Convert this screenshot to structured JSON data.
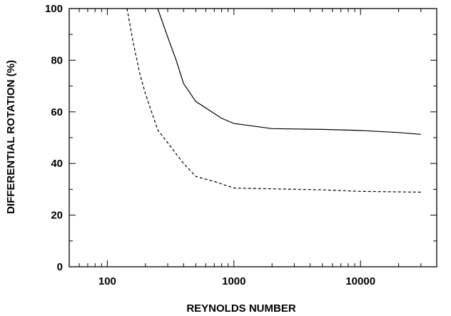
{
  "chart_data": {
    "type": "line",
    "title": "",
    "xlabel": "REYNOLDS NUMBER",
    "ylabel": "DIFFERENTIAL ROTATION (%)",
    "x_scale": "log",
    "xlim": [
      50,
      40000
    ],
    "ylim": [
      0,
      100
    ],
    "x_ticks": [
      100,
      1000,
      10000
    ],
    "x_tick_labels": [
      "100",
      "1000",
      "10000"
    ],
    "y_ticks": [
      0,
      20,
      40,
      60,
      80,
      100
    ],
    "y_tick_labels": [
      "0",
      "20",
      "40",
      "60",
      "80",
      "100"
    ],
    "grid": false,
    "legend": "none",
    "series": [
      {
        "style": "solid",
        "color": "#000000",
        "x": [
          250,
          300,
          350,
          400,
          500,
          800,
          1000,
          2000,
          5000,
          10000,
          20000,
          30000
        ],
        "y": [
          100,
          89,
          80,
          71,
          64,
          57.5,
          55.5,
          53.5,
          53.2,
          52.8,
          52.0,
          51.3
        ]
      },
      {
        "style": "dashed",
        "color": "#000000",
        "x": [
          143,
          160,
          180,
          200,
          250,
          300,
          400,
          500,
          700,
          1000,
          2000,
          5000,
          10000,
          30000
        ],
        "y": [
          100,
          87,
          75,
          67,
          53,
          48,
          40,
          35,
          33,
          30.5,
          30.2,
          29.8,
          29.2,
          28.9
        ]
      }
    ]
  }
}
